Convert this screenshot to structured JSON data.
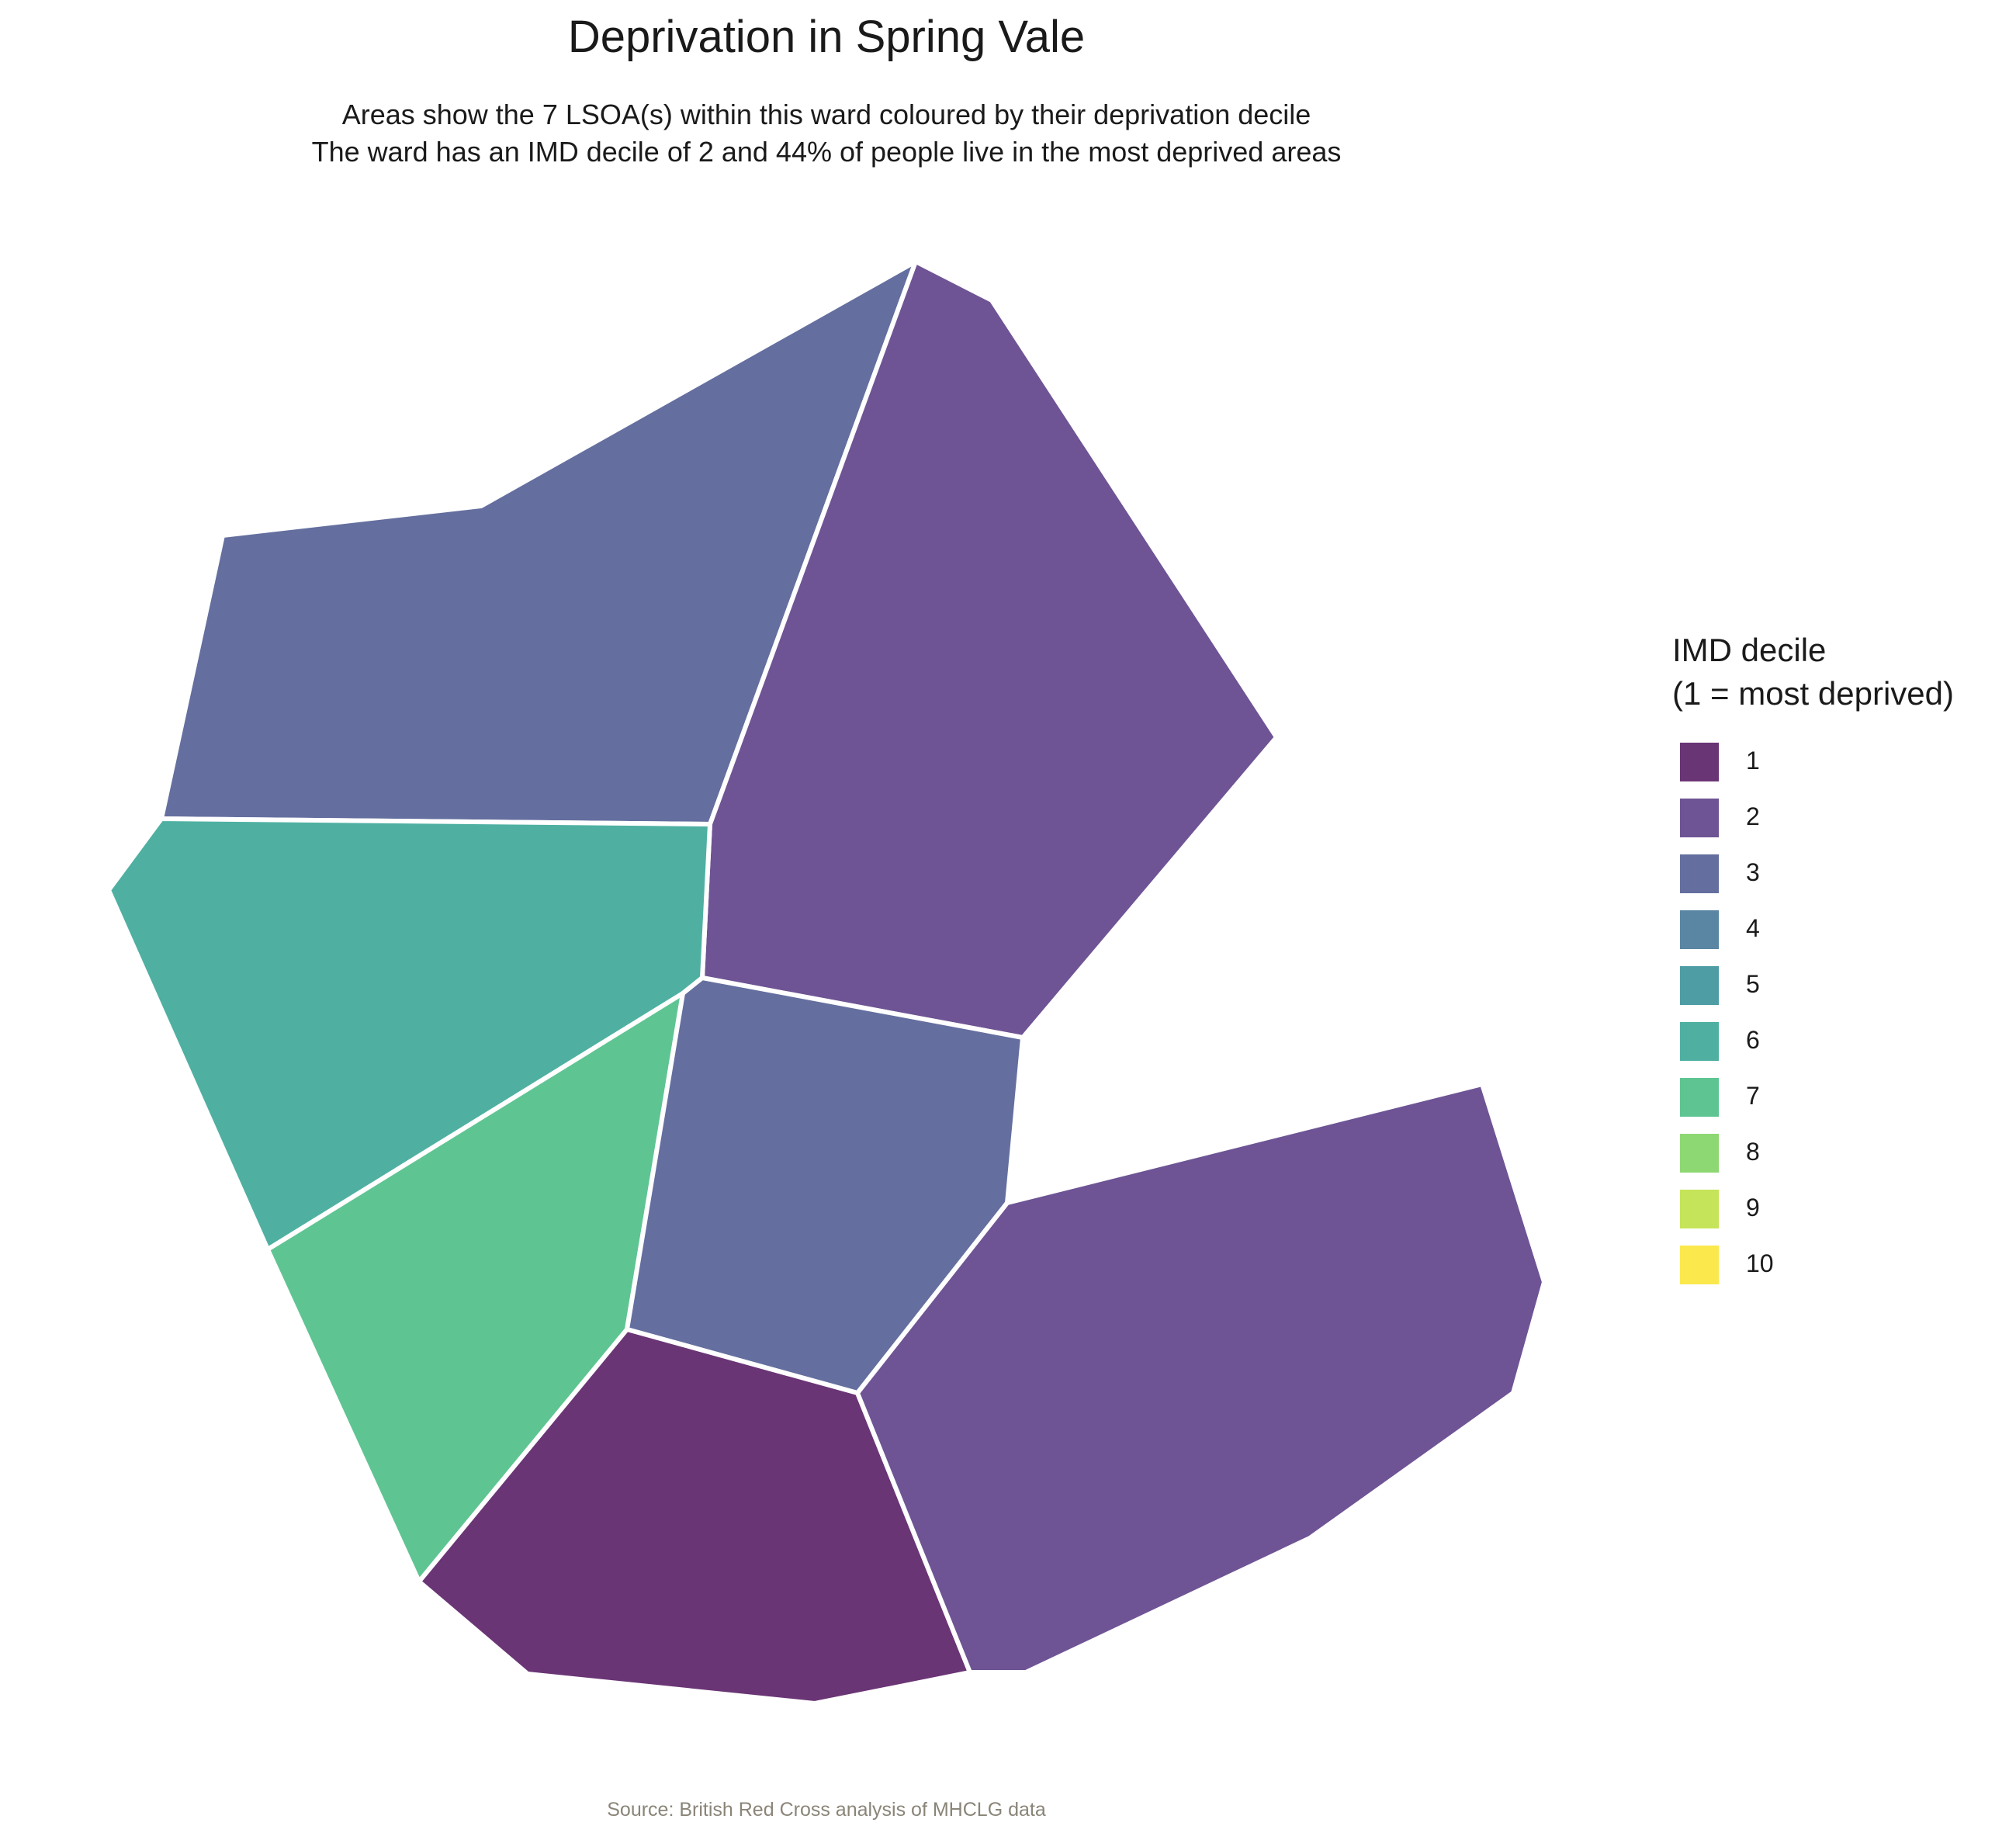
{
  "title": "Deprivation in Spring Vale",
  "subtitle_lines": [
    "Areas show the 7 LSOA(s) within this ward coloured by their deprivation decile",
    "The ward has an IMD decile of 2 and 44% of people live in the most deprived areas"
  ],
  "legend": {
    "title_lines": [
      "IMD decile",
      "(1 = most deprived)"
    ],
    "items": [
      {
        "label": "1",
        "color": "#6a3575"
      },
      {
        "label": "2",
        "color": "#6e5494"
      },
      {
        "label": "3",
        "color": "#646f9f"
      },
      {
        "label": "4",
        "color": "#5a86a3"
      },
      {
        "label": "5",
        "color": "#4f9da4"
      },
      {
        "label": "6",
        "color": "#4fb0a2"
      },
      {
        "label": "7",
        "color": "#5ec592"
      },
      {
        "label": "8",
        "color": "#8ed874"
      },
      {
        "label": "9",
        "color": "#c5e459"
      },
      {
        "label": "10",
        "color": "#fbe84d"
      }
    ]
  },
  "areas": [
    {
      "decile": 3
    },
    {
      "decile": 2
    },
    {
      "decile": 6
    },
    {
      "decile": 7
    },
    {
      "decile": 3
    },
    {
      "decile": 1
    },
    {
      "decile": 2
    }
  ],
  "caption": "Source: British Red Cross analysis of MHCLG data"
}
